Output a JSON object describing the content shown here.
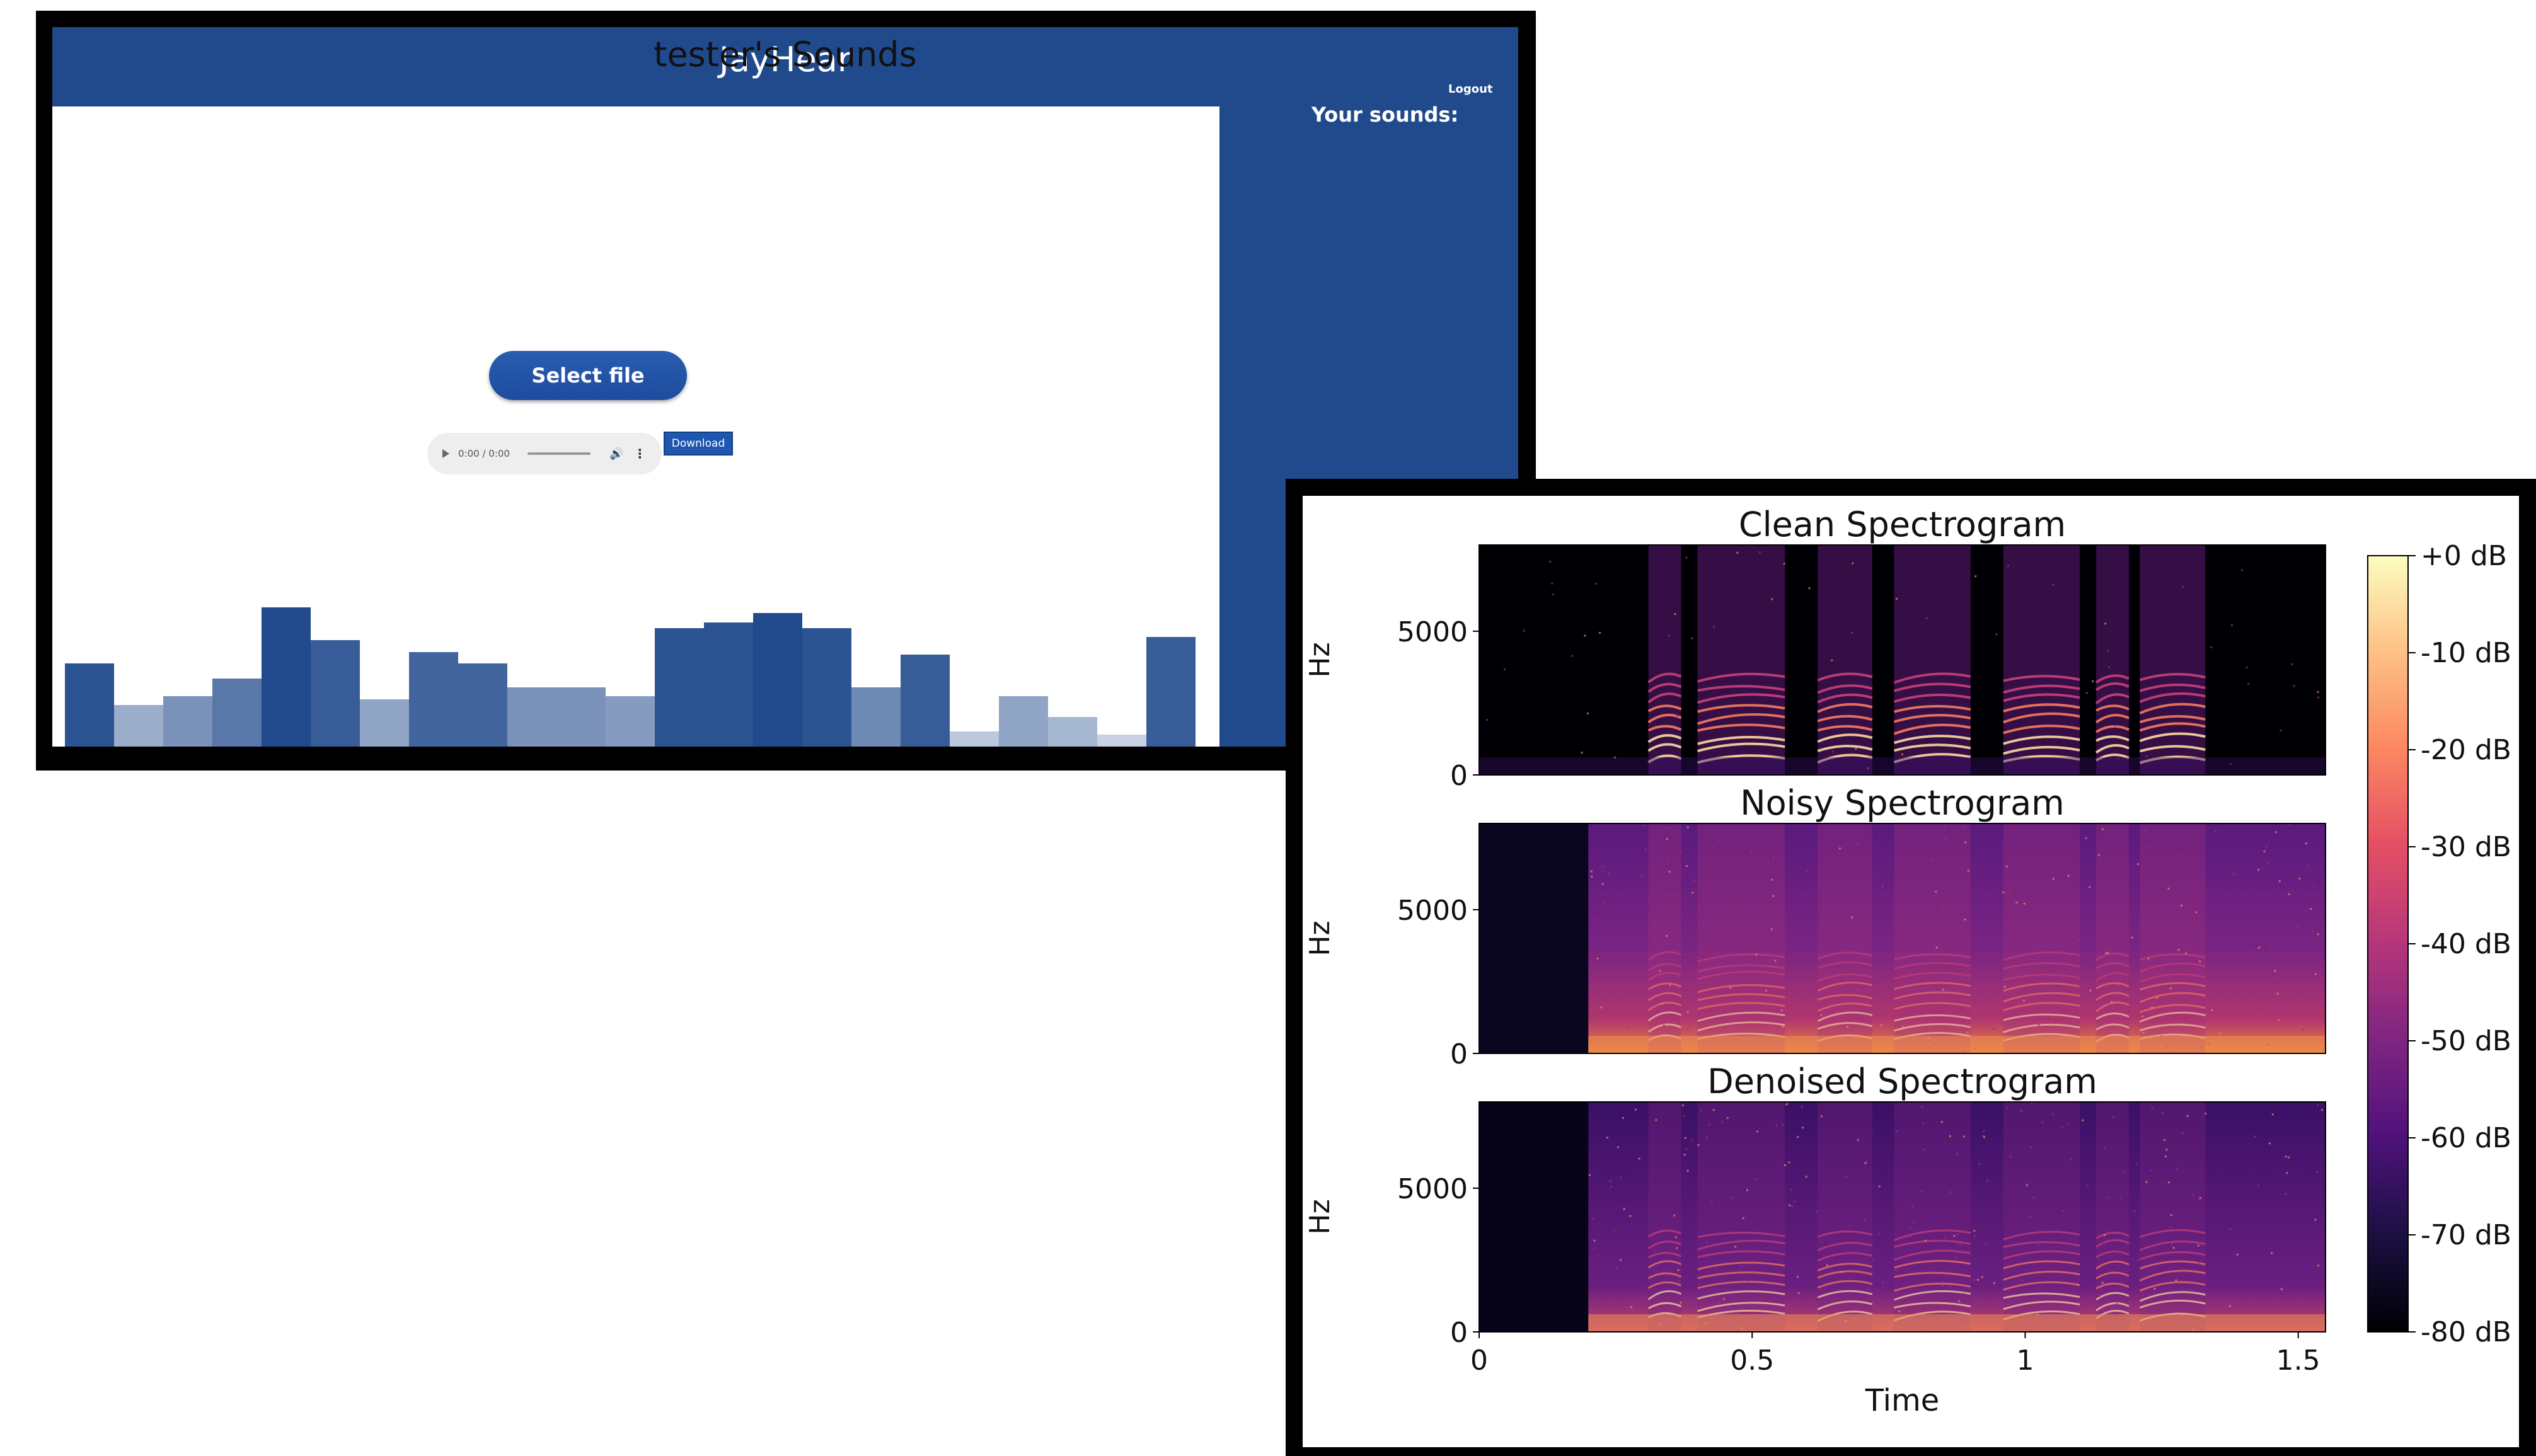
{
  "app": {
    "title": "JayHear",
    "logout_label": "Logout",
    "page_heading": "tester's Sounds",
    "sidebar_title": "Your sounds:",
    "select_file_label": "Select file",
    "audio_player": {
      "time": "0:00 / 0:00"
    },
    "download_label": "Download",
    "colors": {
      "header": "#214a8c",
      "button": "#2459ad",
      "panel": "#ffffff"
    },
    "visualizer_levels": [
      0.28,
      0.14,
      0.17,
      0.23,
      0.47,
      0.36,
      0.16,
      0.32,
      0.28,
      0.2,
      0.2,
      0.17,
      0.4,
      0.42,
      0.45,
      0.4,
      0.2,
      0.31,
      0.05,
      0.17,
      0.1,
      0.04,
      0.37
    ],
    "visualizer_opacity": [
      0.95,
      0.45,
      0.6,
      0.75,
      1.0,
      0.9,
      0.5,
      0.85,
      0.85,
      0.6,
      0.6,
      0.55,
      0.95,
      0.95,
      1.0,
      0.95,
      0.65,
      0.9,
      0.3,
      0.5,
      0.4,
      0.25,
      0.9
    ],
    "icons": [
      "play-icon",
      "volume-icon",
      "more-icon"
    ]
  },
  "chart_data": {
    "type": "heatmap",
    "panels": [
      {
        "title": "Clean Spectrogram",
        "ylabel": "Hz",
        "yticks": [
          "0",
          "5000"
        ]
      },
      {
        "title": "Noisy Spectrogram",
        "ylabel": "Hz",
        "yticks": [
          "0",
          "5000"
        ]
      },
      {
        "title": "Denoised Spectrogram",
        "ylabel": "Hz",
        "yticks": [
          "0",
          "5000"
        ]
      }
    ],
    "xlabel": "Time",
    "xticks": [
      "0",
      "0.5",
      "1",
      "1.5"
    ],
    "x_values": [
      0,
      0.5,
      1,
      1.5
    ],
    "xlim": [
      0,
      1.55
    ],
    "ylim": [
      0,
      8000
    ],
    "colorbar": {
      "ticks": [
        "+0 dB",
        "-10 dB",
        "-20 dB",
        "-30 dB",
        "-40 dB",
        "-50 dB",
        "-60 dB",
        "-70 dB",
        "-80 dB"
      ],
      "range": [
        -80,
        0
      ],
      "colormap": "magma"
    }
  }
}
